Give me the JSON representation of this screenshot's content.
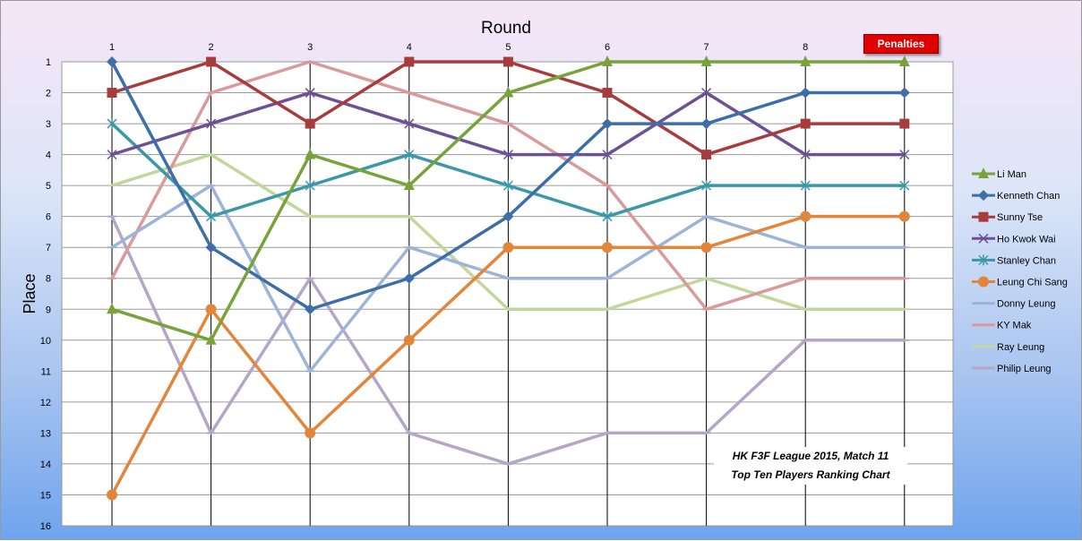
{
  "chart_data": {
    "type": "line",
    "title": "Round",
    "ylabel": "Place",
    "x": [
      "1",
      "2",
      "3",
      "4",
      "5",
      "6",
      "7",
      "8",
      "Penalties"
    ],
    "ylim": [
      16,
      1
    ],
    "y_ticks": [
      1,
      2,
      3,
      4,
      5,
      6,
      7,
      8,
      9,
      10,
      11,
      12,
      13,
      14,
      15,
      16
    ],
    "y_reversed": true,
    "grid": true,
    "legend_position": "right",
    "series": [
      {
        "name": "Li Man",
        "color": "#77a33a",
        "marker": "triangle",
        "values": [
          9,
          10,
          4,
          5,
          2,
          1,
          1,
          1,
          1
        ]
      },
      {
        "name": "Kenneth Chan",
        "color": "#3c6ea8",
        "marker": "diamond",
        "values": [
          1,
          7,
          9,
          8,
          6,
          3,
          3,
          2,
          2
        ]
      },
      {
        "name": "Sunny Tse",
        "color": "#a83c3c",
        "marker": "square",
        "values": [
          2,
          1,
          3,
          1,
          1,
          2,
          4,
          3,
          3
        ]
      },
      {
        "name": "Ho Kwok Wai",
        "color": "#6e5195",
        "marker": "x",
        "values": [
          4,
          3,
          2,
          3,
          4,
          4,
          2,
          4,
          4
        ]
      },
      {
        "name": "Stanley Chan",
        "color": "#3a98a8",
        "marker": "star",
        "values": [
          3,
          6,
          5,
          4,
          5,
          6,
          5,
          5,
          5
        ]
      },
      {
        "name": "Leung Chi Sang",
        "color": "#e3853a",
        "marker": "circle",
        "values": [
          15,
          9,
          13,
          10,
          7,
          7,
          7,
          6,
          6
        ]
      },
      {
        "name": "Donny Leung",
        "color": "#9db4d8",
        "marker": "dash",
        "values": [
          7,
          5,
          11,
          7,
          8,
          8,
          6,
          7,
          7
        ]
      },
      {
        "name": "KY Mak",
        "color": "#d99a9a",
        "marker": "dash",
        "values": [
          8,
          2,
          1,
          2,
          3,
          5,
          9,
          8,
          8
        ]
      },
      {
        "name": "Ray Leung",
        "color": "#c3d79b",
        "marker": "dash",
        "values": [
          5,
          4,
          6,
          6,
          9,
          9,
          8,
          9,
          9
        ]
      },
      {
        "name": "Philip Leung",
        "color": "#b5a6c8",
        "marker": "dash",
        "values": [
          6,
          13,
          8,
          13,
          14,
          13,
          13,
          10,
          10
        ]
      }
    ]
  },
  "penalties_label": "Penalties",
  "caption": {
    "line1": "HK F3F League 2015, Match 11",
    "line2": "Top Ten Players Ranking Chart"
  }
}
